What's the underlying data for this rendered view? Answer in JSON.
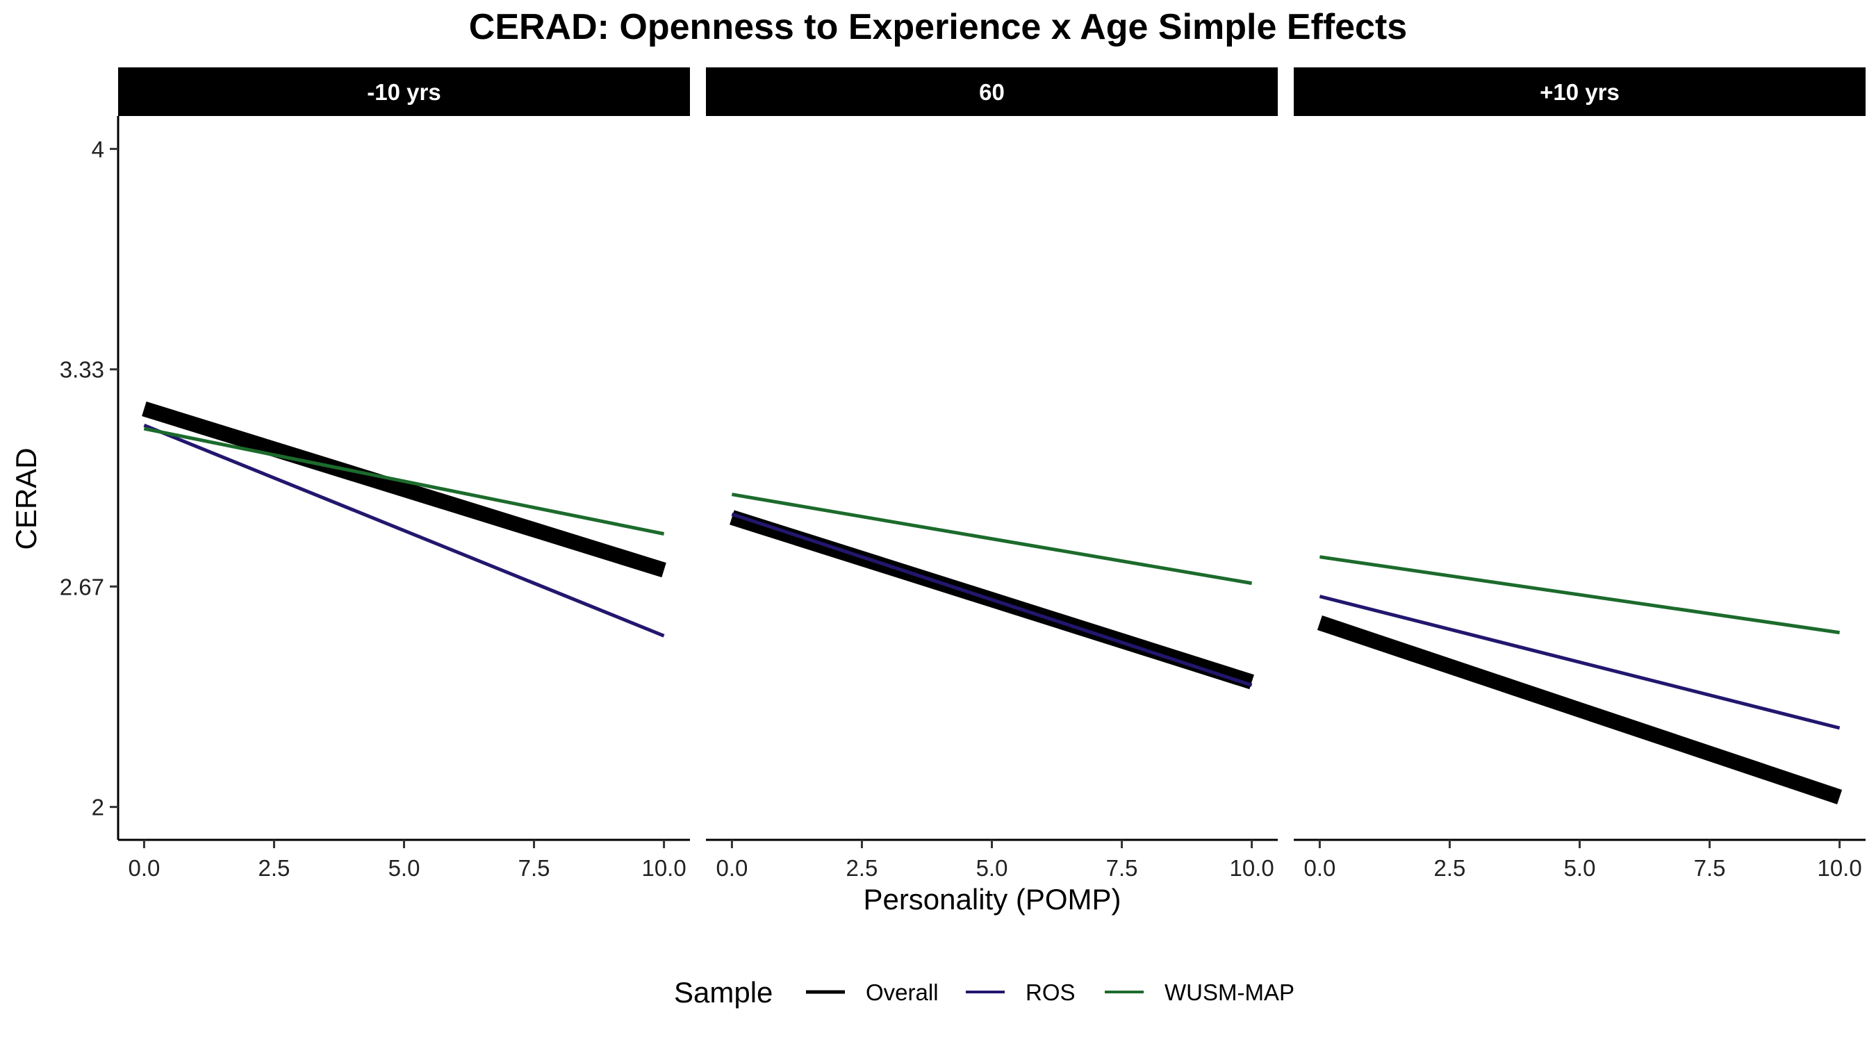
{
  "chart_data": {
    "type": "line",
    "title": "CERAD: Openness to Experience x Age Simple Effects",
    "xlabel": "Personality (POMP)",
    "ylabel": "CERAD",
    "xlim": [
      -0.5,
      10.5
    ],
    "ylim": [
      1.9,
      4.1
    ],
    "xticks": [
      0,
      2.5,
      5,
      7.5,
      10
    ],
    "xtick_labels": [
      "0.0",
      "2.5",
      "5.0",
      "7.5",
      "10.0"
    ],
    "yticks": [
      2,
      2.67,
      3.33,
      4
    ],
    "ytick_labels": [
      "2",
      "2.67",
      "3.33",
      "4"
    ],
    "grid": false,
    "legend": {
      "title": "Sample",
      "position": "bottom",
      "entries": [
        "Overall",
        "ROS",
        "WUSM-MAP"
      ]
    },
    "colors": {
      "Overall": "#000000",
      "ROS": "#22176e",
      "WUSM-MAP": "#1c6b2c"
    },
    "panels": [
      {
        "label": "-10 yrs",
        "series": [
          {
            "name": "Overall",
            "x": [
              0,
              10
            ],
            "y": [
              3.21,
              2.72
            ]
          },
          {
            "name": "ROS",
            "x": [
              0,
              10
            ],
            "y": [
              3.16,
              2.52
            ]
          },
          {
            "name": "WUSM-MAP",
            "x": [
              0,
              10
            ],
            "y": [
              3.15,
              2.83
            ]
          }
        ]
      },
      {
        "label": "60",
        "series": [
          {
            "name": "Overall",
            "x": [
              0,
              10
            ],
            "y": [
              2.88,
              2.38
            ]
          },
          {
            "name": "ROS",
            "x": [
              0,
              10
            ],
            "y": [
              2.89,
              2.37
            ]
          },
          {
            "name": "WUSM-MAP",
            "x": [
              0,
              10
            ],
            "y": [
              2.95,
              2.68
            ]
          }
        ]
      },
      {
        "label": "+10 yrs",
        "series": [
          {
            "name": "Overall",
            "x": [
              0,
              10
            ],
            "y": [
              2.56,
              2.03
            ]
          },
          {
            "name": "ROS",
            "x": [
              0,
              10
            ],
            "y": [
              2.64,
              2.24
            ]
          },
          {
            "name": "WUSM-MAP",
            "x": [
              0,
              10
            ],
            "y": [
              2.76,
              2.53
            ]
          }
        ]
      }
    ]
  }
}
